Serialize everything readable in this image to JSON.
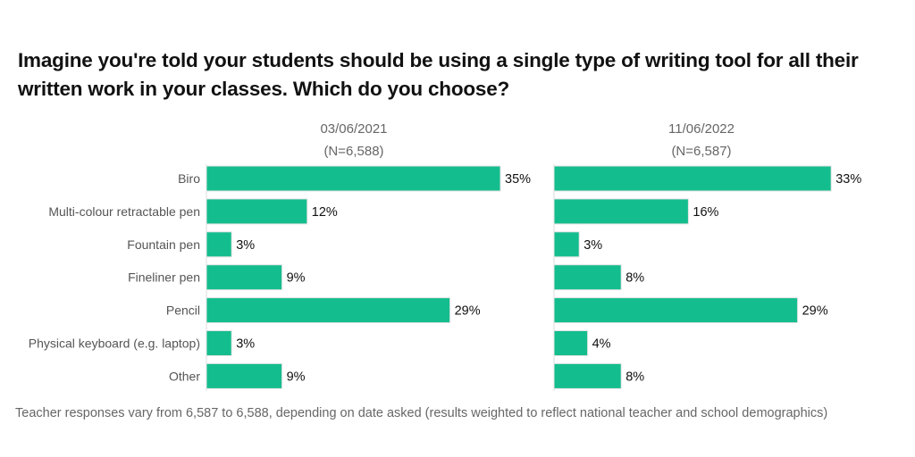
{
  "chart_data": {
    "type": "bar",
    "orientation": "horizontal",
    "title": "Imagine you're told your students should be using a single type of writing tool for all their written work in your classes. Which do you choose?",
    "footnote": "Teacher responses vary from 6,587 to 6,588, depending on date asked (results weighted to reflect national teacher and school demographics)",
    "categories": [
      "Biro",
      "Multi-colour retractable pen",
      "Fountain pen",
      "Fineliner pen",
      "Pencil",
      "Physical keyboard (e.g. laptop)",
      "Other"
    ],
    "panels": [
      {
        "date": "03/06/2021",
        "n": "(N=6,588)",
        "values": [
          35,
          12,
          3,
          9,
          29,
          3,
          9
        ],
        "labels": [
          "35%",
          "12%",
          "3%",
          "9%",
          "29%",
          "3%",
          "9%"
        ]
      },
      {
        "date": "11/06/2022",
        "n": "(N=6,587)",
        "values": [
          33,
          16,
          3,
          8,
          29,
          4,
          8
        ],
        "labels": [
          "33%",
          "16%",
          "3%",
          "8%",
          "29%",
          "4%",
          "8%"
        ]
      }
    ],
    "unit": "%",
    "grid": false,
    "legend": "none",
    "bar_color": "#14BD8E"
  }
}
